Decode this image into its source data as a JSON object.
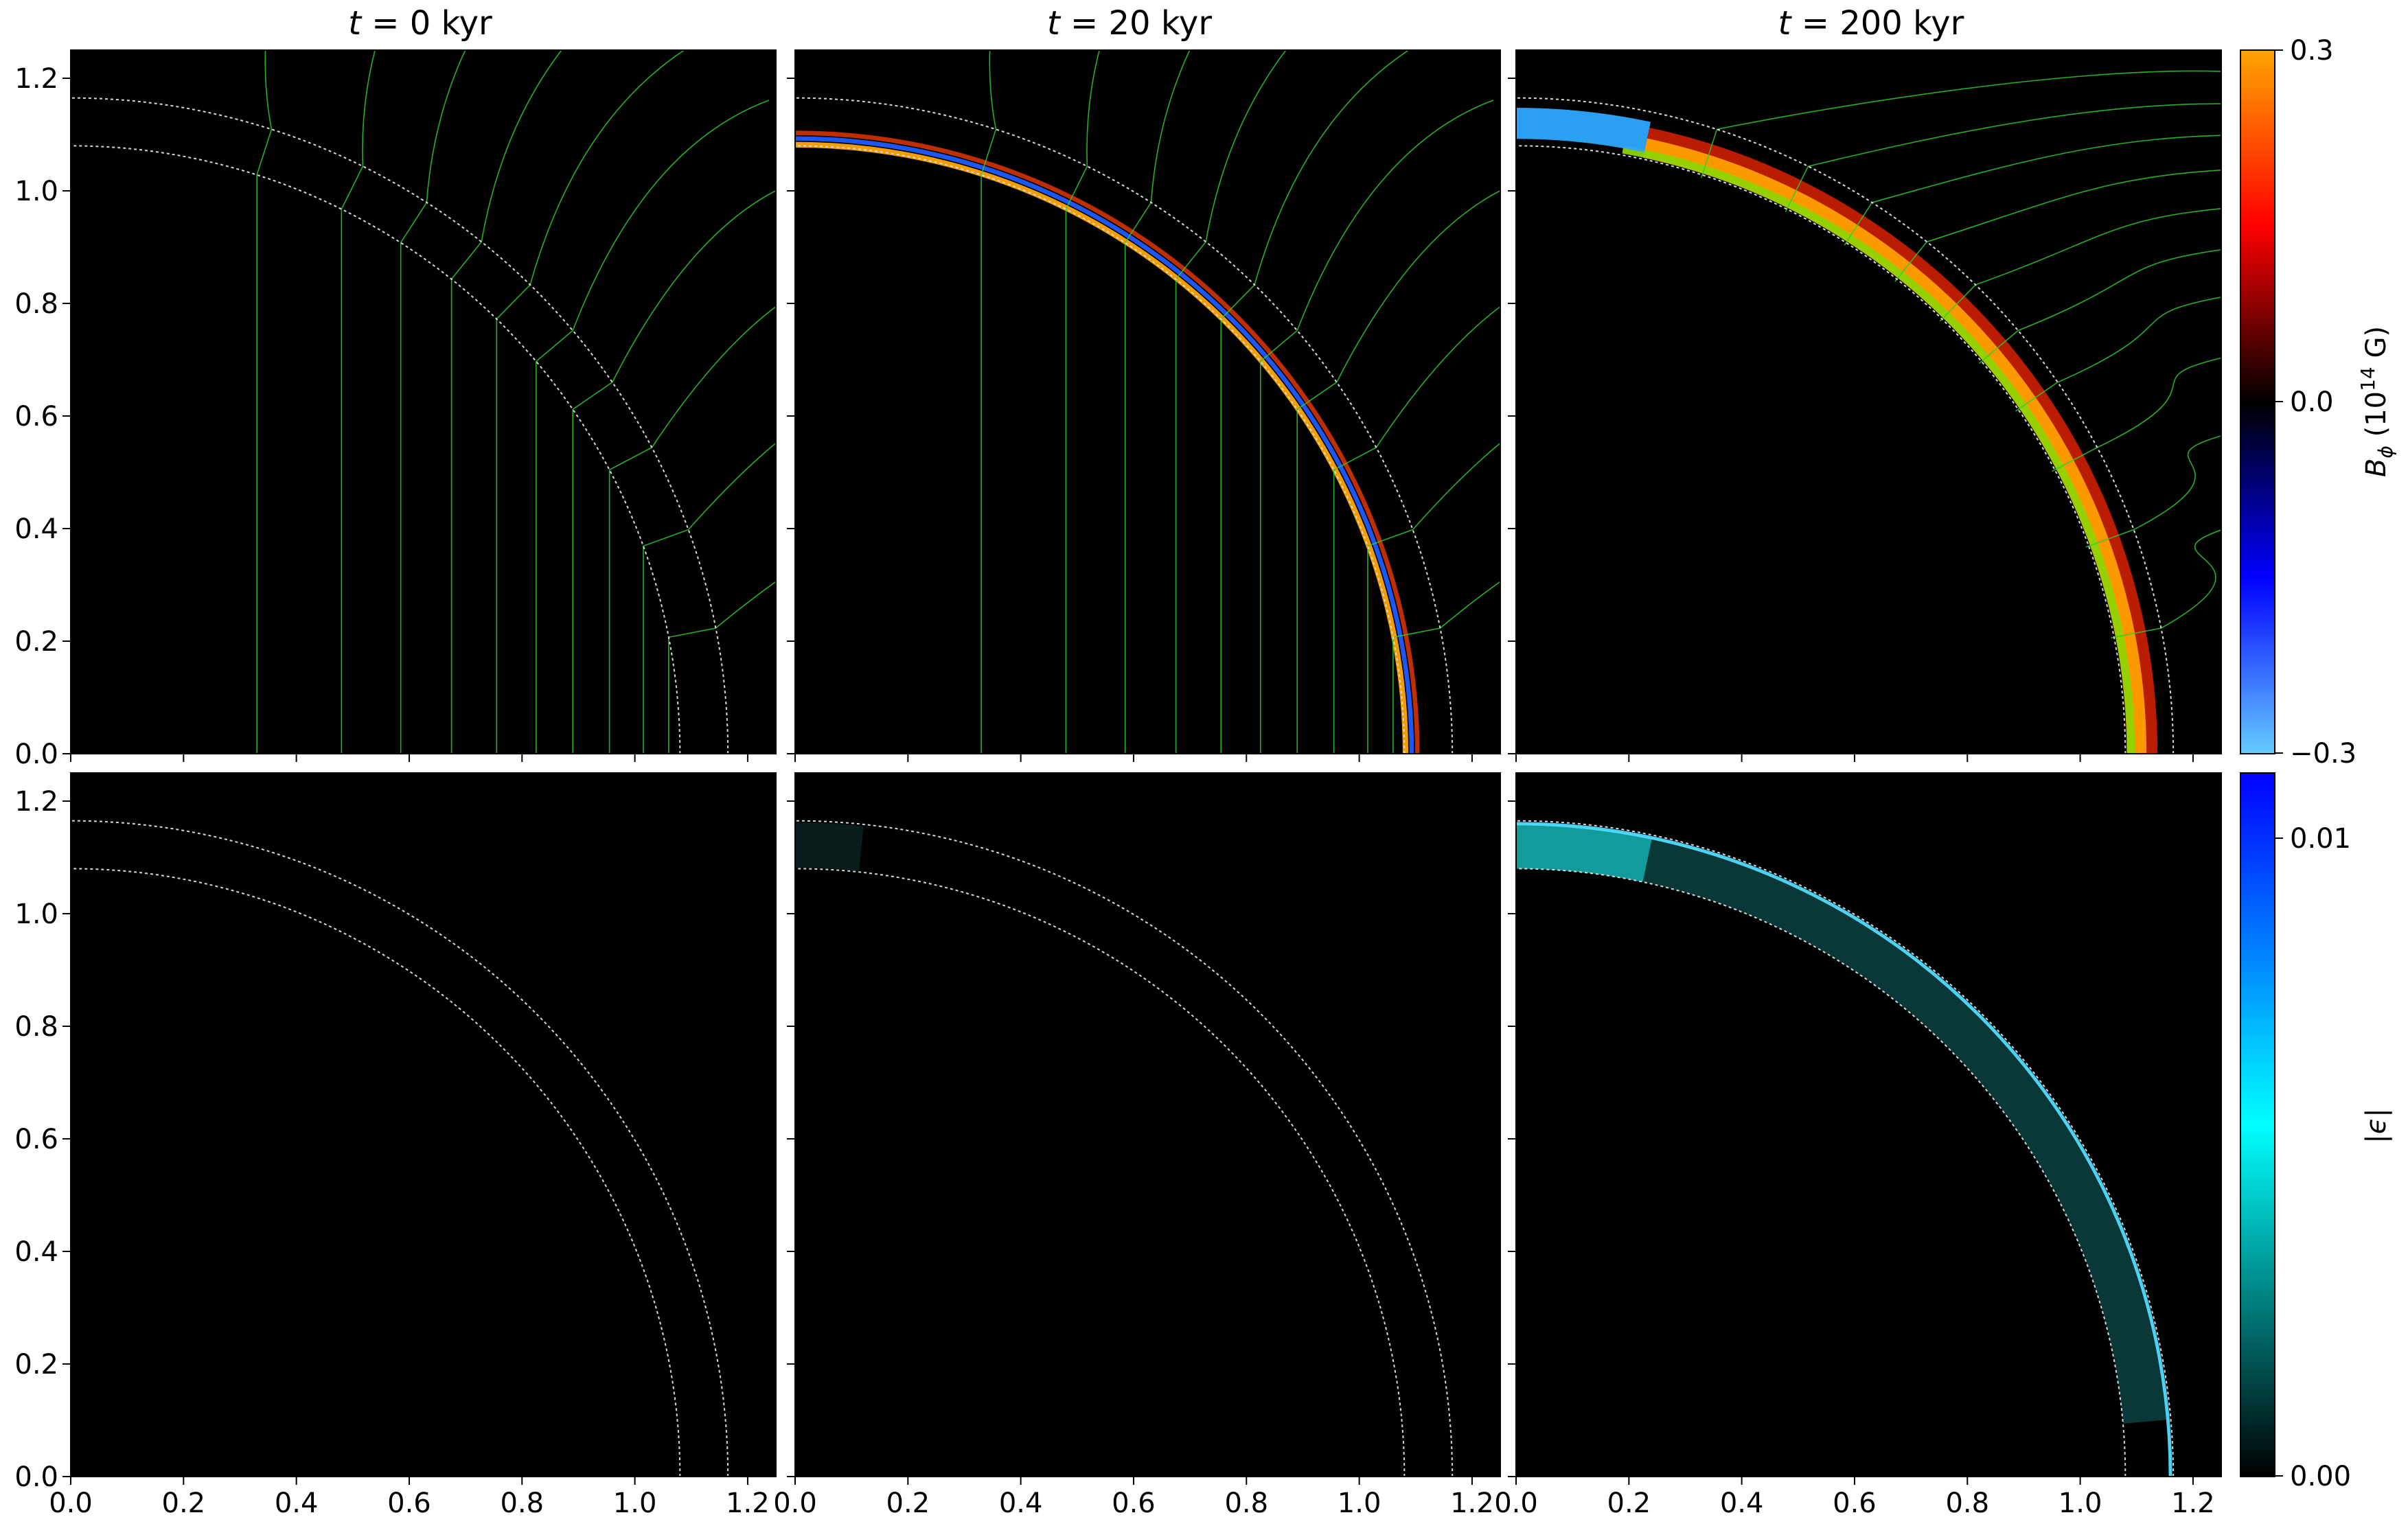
{
  "chart_data": [
    {
      "type": "heatmap",
      "panel": "top-left",
      "title": "t = 0 kyr",
      "title_parts": {
        "var": "t",
        "rest": " = 0 kyr"
      },
      "quantity": "B_phi",
      "snapshot_kyr": 0,
      "xlim": [
        0,
        1.25
      ],
      "ylim": [
        0,
        1.25
      ],
      "xticks": [],
      "yticks": [
        "0.0",
        "0.2",
        "0.4",
        "0.6",
        "0.8",
        "1.0",
        "1.2"
      ],
      "crust_arcs": [
        1.08,
        1.165
      ],
      "field_regions": []
    },
    {
      "type": "heatmap",
      "panel": "top-middle",
      "title": "t = 20 kyr",
      "title_parts": {
        "var": "t",
        "rest": " = 20 kyr"
      },
      "quantity": "B_phi",
      "snapshot_kyr": 20,
      "xlim": [
        0,
        1.25
      ],
      "ylim": [
        0,
        1.25
      ],
      "xticks": [],
      "yticks": [],
      "crust_arcs": [
        1.08,
        1.165
      ],
      "field_regions": [
        {
          "r": 1.082,
          "thickness": 0.01,
          "angle_range_deg": [
            0,
            90
          ],
          "color": "#ffa500"
        },
        {
          "r": 1.093,
          "thickness": 0.008,
          "angle_range_deg": [
            0,
            90
          ],
          "color": "#1f5bff"
        },
        {
          "r": 1.103,
          "thickness": 0.008,
          "angle_range_deg": [
            0,
            90
          ],
          "color": "#c83000"
        }
      ]
    },
    {
      "type": "heatmap",
      "panel": "top-right",
      "title": "t = 200 kyr",
      "title_parts": {
        "var": "t",
        "rest": " = 200 kyr"
      },
      "quantity": "B_phi",
      "snapshot_kyr": 200,
      "xlim": [
        0,
        1.25
      ],
      "ylim": [
        0,
        1.25
      ],
      "xticks": [],
      "yticks": [],
      "crust_arcs": [
        1.08,
        1.165
      ],
      "field_regions": [
        {
          "r": 1.112,
          "thickness": 0.05,
          "angle_range_deg": [
            0,
            78
          ],
          "color": "#c41e00"
        },
        {
          "r": 1.1,
          "thickness": 0.035,
          "angle_range_deg": [
            0,
            78
          ],
          "color": "#ffa000"
        },
        {
          "r": 1.09,
          "thickness": 0.014,
          "angle_range_deg": [
            0,
            80
          ],
          "color": "#8fd400"
        },
        {
          "r": 1.12,
          "thickness": 0.055,
          "angle_range_deg": [
            78,
            90
          ],
          "color": "#2da8ff"
        }
      ]
    },
    {
      "type": "heatmap",
      "panel": "bottom-left",
      "quantity": "epsilon",
      "xlim": [
        0,
        1.25
      ],
      "ylim": [
        0,
        1.25
      ],
      "xticks": [
        "0.0",
        "0.2",
        "0.4",
        "0.6",
        "0.8",
        "1.0",
        "1.2"
      ],
      "yticks": [
        "0.0",
        "0.2",
        "0.4",
        "0.6",
        "0.8",
        "1.0",
        "1.2"
      ],
      "crust_arcs": [
        1.08,
        1.165
      ],
      "field_regions": []
    },
    {
      "type": "heatmap",
      "panel": "bottom-middle",
      "quantity": "epsilon",
      "xlim": [
        0,
        1.25
      ],
      "ylim": [
        0,
        1.25
      ],
      "xticks": [
        "0.0",
        "0.2",
        "0.4",
        "0.6",
        "0.8",
        "1.0",
        "1.2"
      ],
      "yticks": [],
      "crust_arcs": [
        1.08,
        1.165
      ],
      "field_regions": [
        {
          "r": 1.122,
          "thickness": 0.08,
          "angle_range_deg": [
            84,
            90
          ],
          "color": "#0a1f1f"
        }
      ]
    },
    {
      "type": "heatmap",
      "panel": "bottom-right",
      "quantity": "epsilon",
      "xlim": [
        0,
        1.25
      ],
      "ylim": [
        0,
        1.25
      ],
      "xticks": [
        "0.0",
        "0.2",
        "0.4",
        "0.6",
        "0.8",
        "1.0",
        "1.2"
      ],
      "yticks": [],
      "crust_arcs": [
        1.08,
        1.165
      ],
      "field_regions": [
        {
          "r": 1.12,
          "thickness": 0.08,
          "angle_range_deg": [
            5,
            90
          ],
          "color": "#0b3a3a"
        },
        {
          "r": 1.12,
          "thickness": 0.08,
          "angle_range_deg": [
            78,
            90
          ],
          "color": "#14a0a0"
        },
        {
          "r": 1.16,
          "thickness": 0.006,
          "angle_range_deg": [
            0,
            90
          ],
          "color": "#4fdcff"
        }
      ]
    }
  ],
  "colorbar_top": {
    "label_parts": {
      "sym": "B",
      "sub": "ϕ",
      "pre": " (10",
      "sup": "14",
      "post": " G)"
    },
    "ticks": [
      "0.3",
      "0.0",
      "−0.3"
    ],
    "range": [
      -0.3,
      0.3
    ],
    "gradient": [
      "#66ccff",
      "#0000ff",
      "#000000",
      "#ff0000",
      "#ffa500"
    ]
  },
  "colorbar_bottom": {
    "label": "|ϵ|",
    "ticks": [
      "0.01",
      "0.00"
    ],
    "range": [
      0.0,
      0.012
    ],
    "gradient": [
      "#000000",
      "#00ffff",
      "#0000ff"
    ]
  },
  "colors": {
    "panel_background": "#000000",
    "crust_boundary": "#d8d8d8",
    "field_lines": "#2ecc2e"
  }
}
